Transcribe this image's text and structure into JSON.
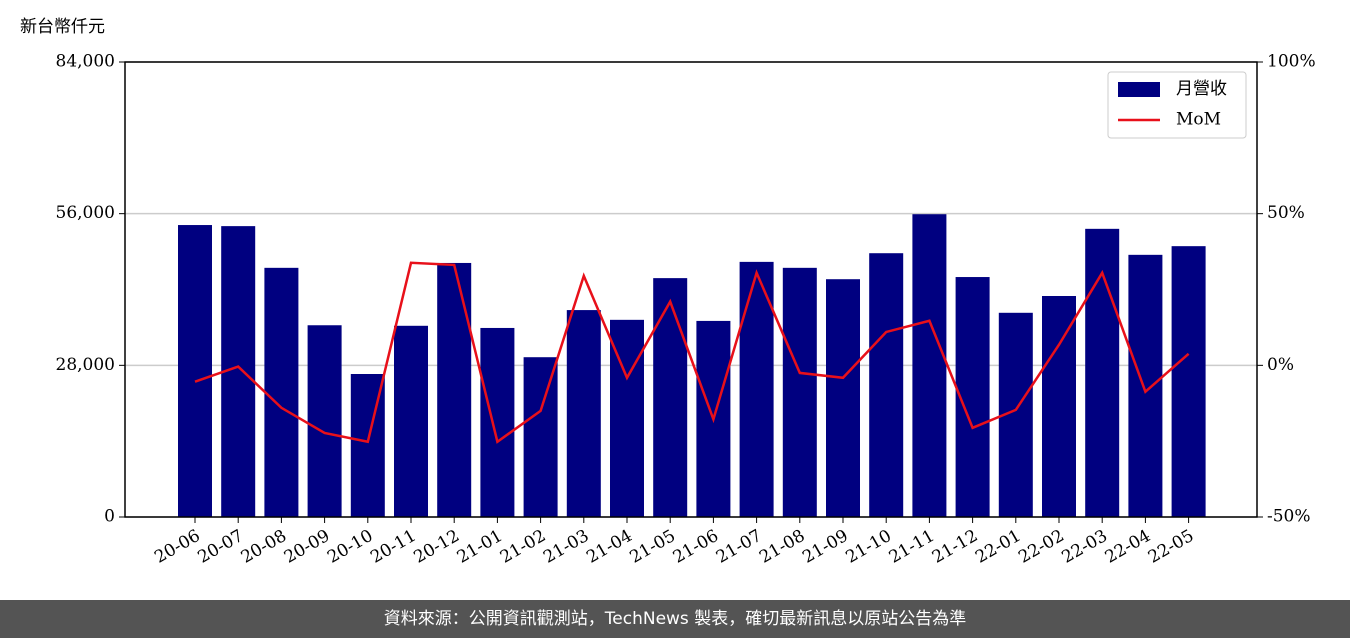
{
  "chart_data": {
    "type": "bar_line",
    "ylabel": "新台幣仟元",
    "categories": [
      "20-06",
      "20-07",
      "20-08",
      "20-09",
      "20-10",
      "20-11",
      "20-12",
      "21-01",
      "21-02",
      "21-03",
      "21-04",
      "21-05",
      "21-06",
      "21-07",
      "21-08",
      "21-09",
      "21-10",
      "21-11",
      "21-12",
      "22-01",
      "22-02",
      "22-03",
      "22-04",
      "22-05"
    ],
    "series": [
      {
        "name": "月營收",
        "color": "#000080",
        "type": "bar",
        "values": [
          53900,
          53700,
          46000,
          35400,
          26400,
          35300,
          46900,
          34900,
          29500,
          38200,
          36400,
          44100,
          36200,
          47100,
          46000,
          43900,
          48700,
          55900,
          44300,
          37700,
          40800,
          53200,
          48400,
          50000
        ]
      },
      {
        "name": "MoM",
        "color": "#e8101a",
        "type": "line",
        "axis": "y2",
        "values": [
          -5.4,
          -0.4,
          -14,
          -22.3,
          -25.2,
          33.8,
          33.1,
          -25.2,
          -15,
          29.5,
          -4.1,
          21,
          -17.8,
          30.5,
          -2.5,
          -4.1,
          11,
          14.7,
          -20.6,
          -14.7,
          6.8,
          30.5,
          -8.7,
          3.8
        ]
      }
    ],
    "ylim": [
      0,
      84000
    ],
    "yticks": [
      0,
      {
        "value": 28000,
        "label": "28,000"
      },
      {
        "value": 56000,
        "label": "56,000"
      },
      {
        "value": 84000,
        "label": "84,000"
      }
    ],
    "y2lim": [
      -50,
      100
    ],
    "y2ticks": [
      {
        "value": -50,
        "label": "-50%"
      },
      {
        "value": 0,
        "label": "0%"
      },
      {
        "value": 50,
        "label": "50%"
      },
      {
        "value": 100,
        "label": "100%"
      }
    ],
    "grid": true,
    "legend": "upper right"
  },
  "footer": "資料來源：公開資訊觀測站，TechNews 製表，確切最新訊息以原站公告為準"
}
